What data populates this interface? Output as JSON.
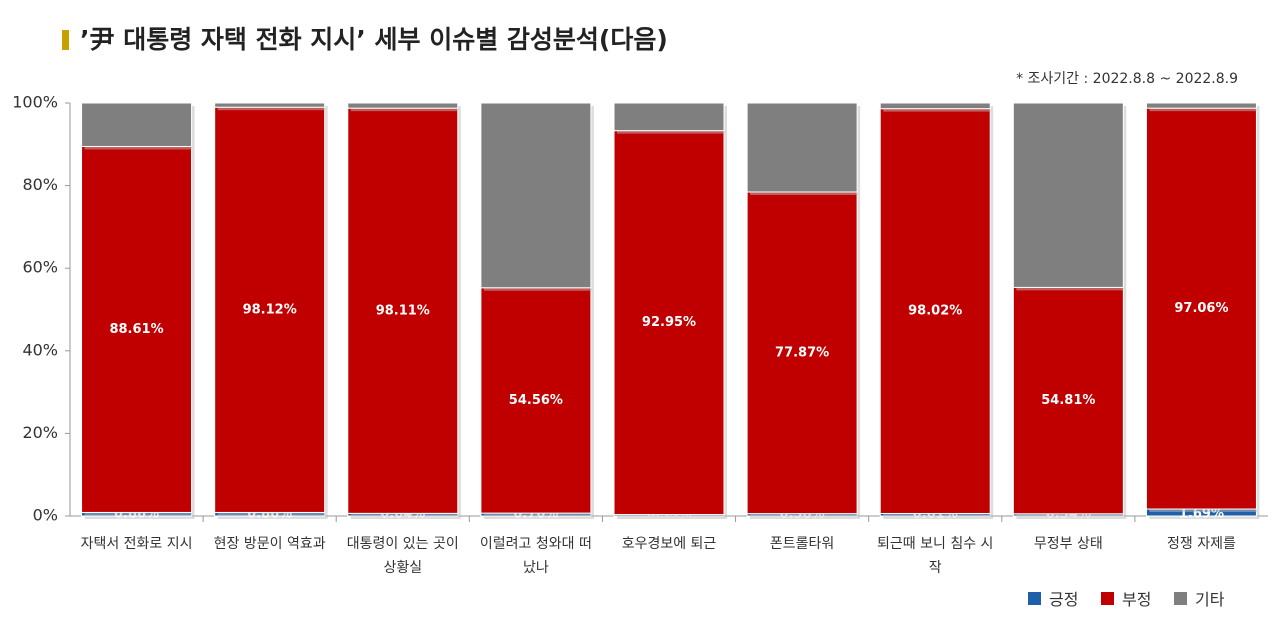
{
  "chart_data": {
    "type": "stacked_bar_100",
    "title": "’尹 대통령 자택 전화 지시’ 세부 이슈별 감성분석(다음)",
    "subtitle": "* 조사기간 : 2022.8.8 ~ 2022.8.9",
    "categories": [
      "자택서 전화로 지시",
      "현장 방문이 역효과",
      "대통령이 있는 곳이 상황실",
      "이럴려고 청와대 떠났나",
      "호우경보에 퇴근",
      "폰트롤타워",
      "퇴근때 보니 침수 시작",
      "무정부 상태",
      "정쟁 자제를"
    ],
    "series": [
      {
        "name": "긍정",
        "color": "#1f5fa8",
        "values": [
          0.86,
          0.86,
          0.64,
          0.7,
          0.35,
          0.58,
          0.61,
          0.54,
          1.69
        ],
        "value_labels": [
          "0.86%",
          "0.86%",
          "0.64%",
          "0.70%",
          "0.35%",
          "0.58%",
          "0.61%",
          "0.54%",
          "1.69%"
        ]
      },
      {
        "name": "부정",
        "color": "#c00000",
        "values": [
          88.61,
          98.12,
          98.11,
          54.56,
          92.95,
          77.87,
          98.02,
          54.81,
          97.06
        ],
        "value_labels": [
          "88.61%",
          "98.12%",
          "98.11%",
          "54.56%",
          "92.95%",
          "77.87%",
          "98.02%",
          "54.81%",
          "97.06%"
        ]
      },
      {
        "name": "기타",
        "color": "#7f7f7f",
        "values": [
          10.53,
          1.02,
          1.25,
          44.74,
          6.7,
          21.55,
          1.37,
          44.65,
          1.25
        ]
      }
    ],
    "ylim": [
      0,
      100
    ],
    "yticks": [
      {
        "value": 0,
        "label": "0%"
      },
      {
        "value": 20,
        "label": "20%"
      },
      {
        "value": 40,
        "label": "40%"
      },
      {
        "value": 60,
        "label": "60%"
      },
      {
        "value": 80,
        "label": "80%"
      },
      {
        "value": 100,
        "label": "100%"
      }
    ],
    "grid": false,
    "legend": "bottom-right"
  }
}
